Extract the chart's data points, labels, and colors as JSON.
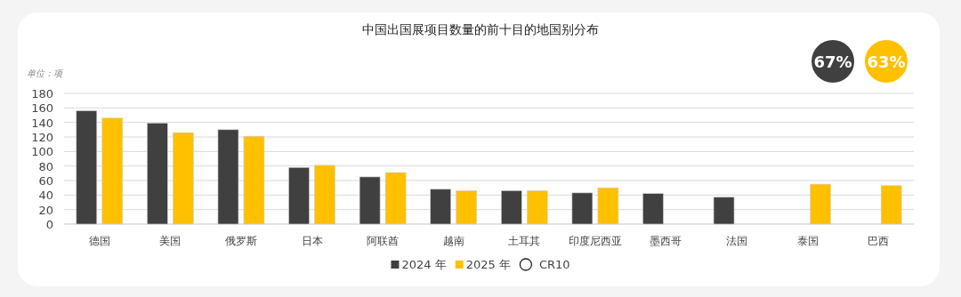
{
  "chart_data": {
    "type": "bar",
    "title": "中国出国展项目数量的前十目的地国别分布",
    "ylabel": "单位：项",
    "categories": [
      "德国",
      "美国",
      "俄罗斯",
      "日本",
      "阿联酋",
      "越南",
      "土耳其",
      "印度尼西亚",
      "墨西哥",
      "法国",
      "泰国",
      "巴西"
    ],
    "series": [
      {
        "name": "2024 年",
        "color": "#404040",
        "values": [
          156,
          139,
          130,
          78,
          65,
          48,
          46,
          43,
          42,
          37,
          null,
          null
        ]
      },
      {
        "name": "2025 年",
        "color": "#ffc000",
        "values": [
          146,
          126,
          121,
          81,
          71,
          46,
          46,
          50,
          null,
          null,
          55,
          53
        ]
      }
    ],
    "ylim": [
      0,
      180
    ],
    "yticks": [
      0,
      20,
      40,
      60,
      80,
      100,
      120,
      140,
      160,
      180
    ],
    "grid": "y",
    "legend": "bottom",
    "annotations": [
      "CR10",
      "67%",
      "63%"
    ]
  }
}
